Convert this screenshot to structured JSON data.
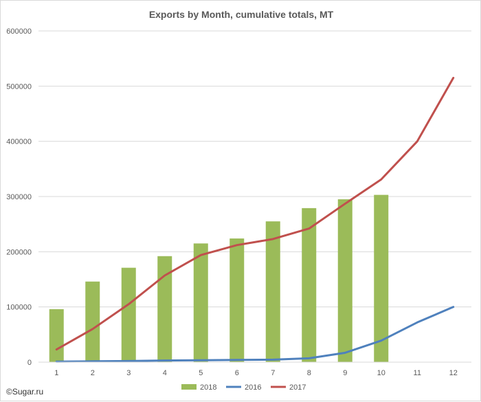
{
  "chart_data": {
    "type": "bar",
    "title": "Exports by Month, cumulative totals, MT",
    "xlabel": "",
    "ylabel": "",
    "ylim": [
      0,
      600000
    ],
    "yticks": [
      "0",
      "100000",
      "200000",
      "300000",
      "400000",
      "500000",
      "600000"
    ],
    "categories": [
      "1",
      "2",
      "3",
      "4",
      "5",
      "6",
      "7",
      "8",
      "9",
      "10",
      "11",
      "12"
    ],
    "grid": true,
    "legend_position": "bottom",
    "series": [
      {
        "name": "2018",
        "kind": "bar",
        "color": "#9bbb59",
        "values": [
          96000,
          146000,
          171000,
          192000,
          215000,
          224000,
          255000,
          279000,
          295000,
          303000,
          null,
          null
        ]
      },
      {
        "name": "2016",
        "kind": "line",
        "color": "#4f81bd",
        "values": [
          1000,
          1500,
          2000,
          3000,
          3500,
          4000,
          4500,
          7000,
          17000,
          39000,
          72000,
          100000
        ]
      },
      {
        "name": "2017",
        "kind": "line",
        "color": "#c0504d",
        "values": [
          23000,
          60000,
          105000,
          157000,
          194000,
          212000,
          223000,
          242000,
          287000,
          331000,
          400000,
          515000
        ]
      }
    ]
  },
  "credit": "©Sugar.ru"
}
